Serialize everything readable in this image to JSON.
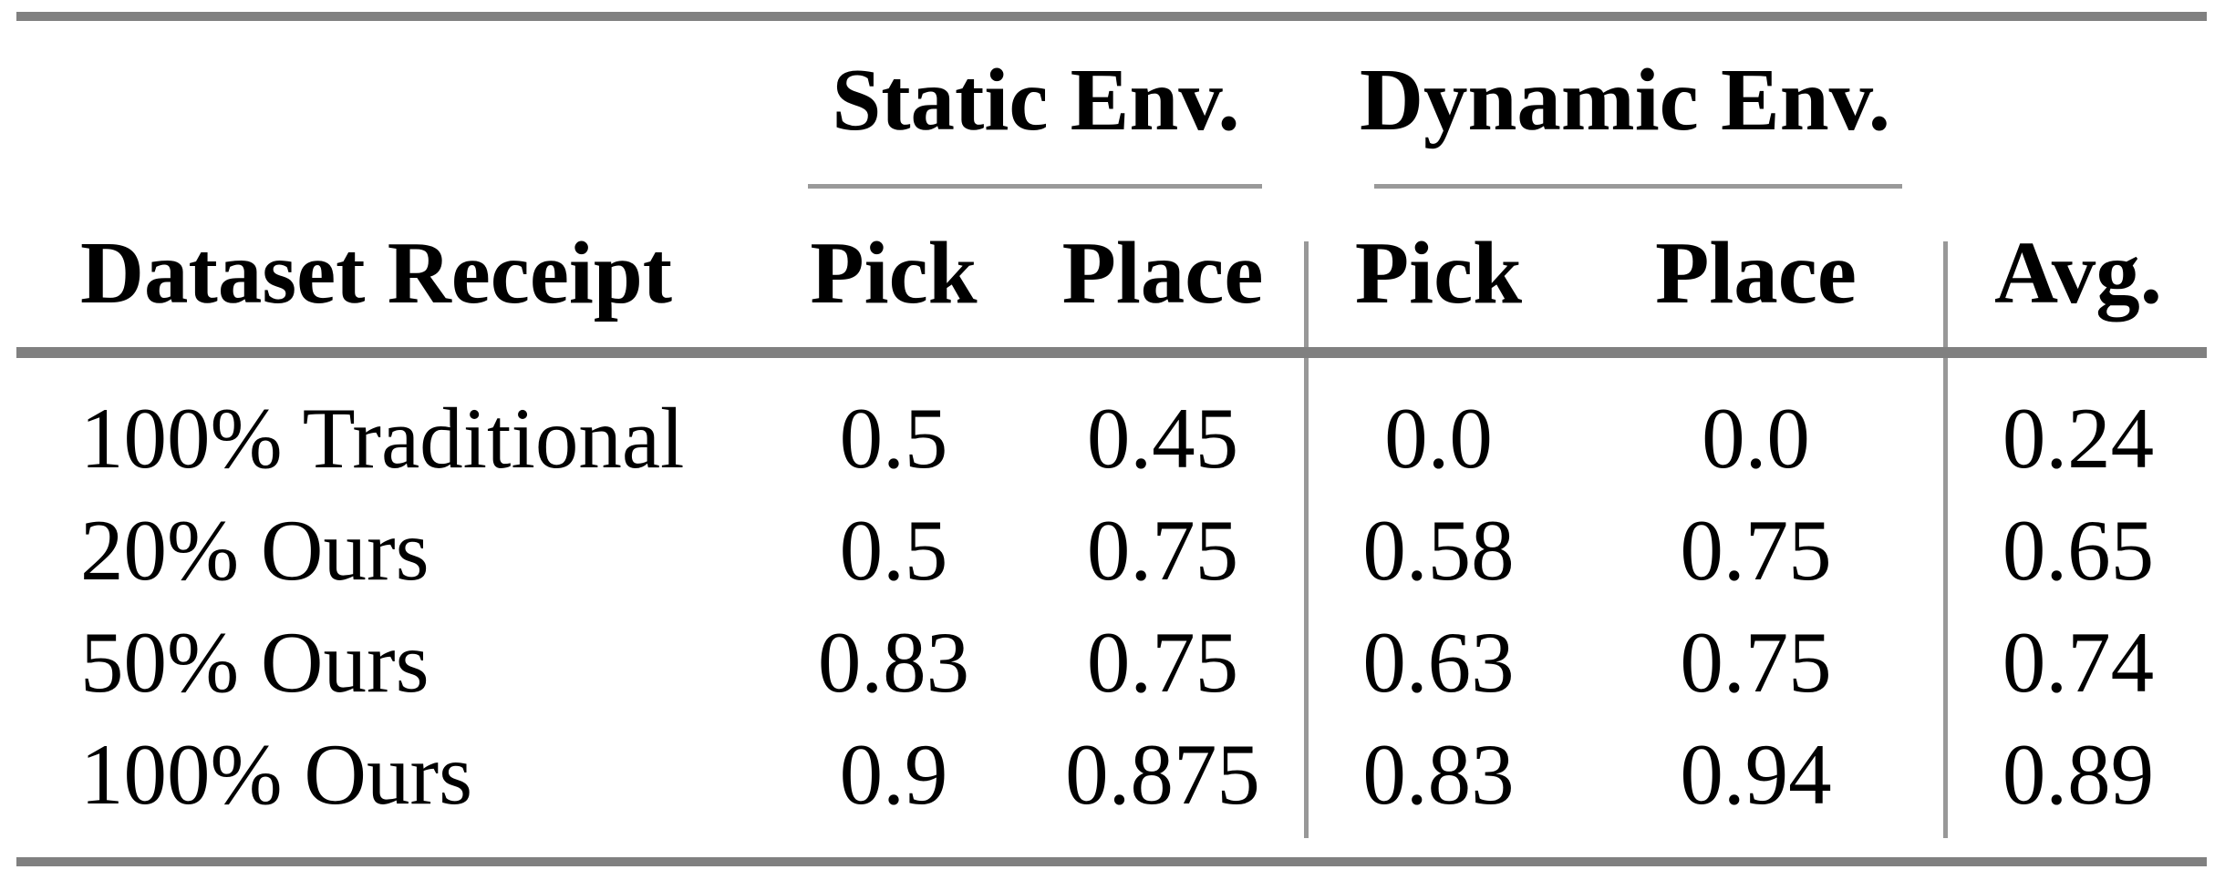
{
  "figure": {
    "kind": "paper-results-table",
    "background": "#ffffff",
    "text_color": "#000000",
    "thick_rule_color": "#808080",
    "thin_rule_color": "#999999"
  },
  "table": {
    "group_headers": [
      "Static Env.",
      "Dynamic Env."
    ],
    "columns": [
      "Dataset Receipt",
      "Pick",
      "Place",
      "Pick",
      "Place",
      "Avg."
    ],
    "rows": [
      {
        "label": "100% Traditional",
        "values": [
          "0.5",
          "0.45",
          "0.0",
          "0.0",
          "0.24"
        ]
      },
      {
        "label": "20% Ours",
        "values": [
          "0.5",
          "0.75",
          "0.58",
          "0.75",
          "0.65"
        ]
      },
      {
        "label": "50% Ours",
        "values": [
          "0.83",
          "0.75",
          "0.63",
          "0.75",
          "0.74"
        ]
      },
      {
        "label": "100% Ours",
        "values": [
          "0.9",
          "0.875",
          "0.83",
          "0.94",
          "0.89"
        ]
      }
    ]
  },
  "chart_data": {
    "type": "table",
    "title": "",
    "column_groups": [
      {
        "label": "",
        "columns": [
          "Dataset Receipt"
        ]
      },
      {
        "label": "Static Env.",
        "columns": [
          "Pick",
          "Place"
        ]
      },
      {
        "label": "Dynamic Env.",
        "columns": [
          "Pick",
          "Place"
        ]
      },
      {
        "label": "",
        "columns": [
          "Avg."
        ]
      }
    ],
    "rows": [
      [
        "100% Traditional",
        0.5,
        0.45,
        0.0,
        0.0,
        0.24
      ],
      [
        "20% Ours",
        0.5,
        0.75,
        0.58,
        0.75,
        0.65
      ],
      [
        "50% Ours",
        0.83,
        0.75,
        0.63,
        0.75,
        0.74
      ],
      [
        "100% Ours",
        0.9,
        0.875,
        0.83,
        0.94,
        0.89
      ]
    ]
  }
}
